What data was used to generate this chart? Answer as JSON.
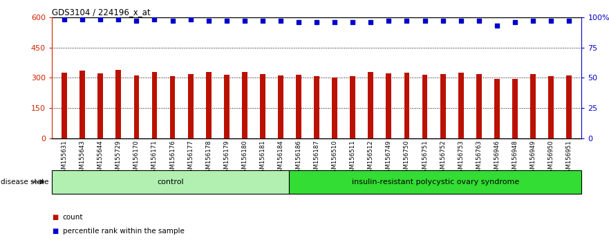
{
  "title": "GDS3104 / 224196_x_at",
  "samples": [
    "GSM155631",
    "GSM155643",
    "GSM155644",
    "GSM155729",
    "GSM156170",
    "GSM156171",
    "GSM156176",
    "GSM156177",
    "GSM156178",
    "GSM156179",
    "GSM156180",
    "GSM156181",
    "GSM156184",
    "GSM156186",
    "GSM156187",
    "GSM156510",
    "GSM156511",
    "GSM156512",
    "GSM156749",
    "GSM156750",
    "GSM156751",
    "GSM156752",
    "GSM156753",
    "GSM156763",
    "GSM156946",
    "GSM156948",
    "GSM156949",
    "GSM156950",
    "GSM156951"
  ],
  "bar_values": [
    325,
    335,
    322,
    340,
    310,
    330,
    308,
    320,
    330,
    315,
    330,
    320,
    310,
    315,
    307,
    302,
    307,
    330,
    322,
    325,
    315,
    320,
    325,
    318,
    295,
    295,
    320,
    308,
    310
  ],
  "percentile_values": [
    98,
    98,
    98,
    98,
    97,
    98,
    97,
    98,
    97,
    97,
    97,
    97,
    97,
    96,
    96,
    96,
    96,
    96,
    97,
    97,
    97,
    97,
    97,
    97,
    93,
    96,
    97,
    97,
    97
  ],
  "control_count": 13,
  "group_labels": [
    "control",
    "insulin-resistant polycystic ovary syndrome"
  ],
  "group_colors": [
    "#b2f0b2",
    "#33dd33"
  ],
  "bar_color": "#BB1100",
  "dot_color": "#0000CC",
  "left_axis_color": "#CC2200",
  "right_axis_color": "#0000CC",
  "ylim_left": [
    0,
    600
  ],
  "left_yticks": [
    0,
    150,
    300,
    450,
    600
  ],
  "right_ytick_vals": [
    0,
    25,
    50,
    75,
    100
  ],
  "right_ytick_labels": [
    "0",
    "25",
    "50",
    "75",
    "100%"
  ],
  "grid_values": [
    150,
    300,
    450
  ],
  "tick_bg_color": "#c8c8c8",
  "background_color": "#ffffff",
  "disease_state_label": "disease state",
  "legend_items": [
    {
      "marker": "s",
      "color": "#BB1100",
      "label": "count"
    },
    {
      "marker": "s",
      "color": "#0000CC",
      "label": "percentile rank within the sample"
    }
  ]
}
